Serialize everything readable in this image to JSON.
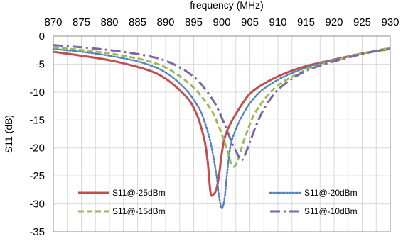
{
  "chart_data": {
    "type": "line",
    "xlabel": "frequency (MHz)",
    "ylabel": "S11 (dB)",
    "x_axis_position": "top",
    "xlim": [
      870,
      930
    ],
    "ylim": [
      -35,
      0
    ],
    "xticks": [
      870,
      875,
      880,
      885,
      890,
      895,
      900,
      905,
      910,
      915,
      920,
      925,
      930
    ],
    "yticks": [
      0,
      -5,
      -10,
      -15,
      -20,
      -25,
      -30,
      -35
    ],
    "grid": true,
    "legend_position": "bottom-inside",
    "series": [
      {
        "name": "S11@-25dBm",
        "color": "#c0504d",
        "style": "solid",
        "points": [
          [
            870,
            -2.8
          ],
          [
            875,
            -3.5
          ],
          [
            880,
            -4.3
          ],
          [
            885,
            -5.5
          ],
          [
            888,
            -6.5
          ],
          [
            890,
            -7.6
          ],
          [
            892,
            -9.2
          ],
          [
            894,
            -11.2
          ],
          [
            895,
            -12.8
          ],
          [
            896,
            -15.2
          ],
          [
            897,
            -19.0
          ],
          [
            897.5,
            -22.5
          ],
          [
            898,
            -28.0
          ],
          [
            898.5,
            -28.3
          ],
          [
            899,
            -27.5
          ],
          [
            899.5,
            -25.0
          ],
          [
            900,
            -21.0
          ],
          [
            900.5,
            -18.3
          ],
          [
            901,
            -16.8
          ],
          [
            902,
            -14.8
          ],
          [
            903,
            -13.1
          ],
          [
            904,
            -11.6
          ],
          [
            905,
            -10.3
          ],
          [
            907,
            -8.8
          ],
          [
            910,
            -7.2
          ],
          [
            913,
            -6.0
          ],
          [
            916,
            -5.1
          ],
          [
            920,
            -4.2
          ],
          [
            925,
            -3.1
          ],
          [
            930,
            -2.3
          ]
        ]
      },
      {
        "name": "S11@-20dBm",
        "color": "#4f81bd",
        "style": "dotted",
        "points": [
          [
            870,
            -2.3
          ],
          [
            875,
            -2.8
          ],
          [
            880,
            -3.5
          ],
          [
            885,
            -4.5
          ],
          [
            888,
            -5.5
          ],
          [
            890,
            -6.5
          ],
          [
            892,
            -8.0
          ],
          [
            894,
            -10.0
          ],
          [
            896,
            -13.0
          ],
          [
            897,
            -15.5
          ],
          [
            898,
            -19.0
          ],
          [
            899,
            -24.5
          ],
          [
            899.5,
            -28.5
          ],
          [
            900,
            -30.8
          ],
          [
            900.5,
            -29.0
          ],
          [
            901,
            -24.0
          ],
          [
            901.5,
            -20.0
          ],
          [
            902,
            -18.0
          ],
          [
            903,
            -15.5
          ],
          [
            904,
            -13.6
          ],
          [
            905,
            -12.0
          ],
          [
            907,
            -9.8
          ],
          [
            910,
            -7.8
          ],
          [
            913,
            -6.4
          ],
          [
            916,
            -5.3
          ],
          [
            920,
            -4.3
          ],
          [
            925,
            -3.1
          ],
          [
            930,
            -2.2
          ]
        ]
      },
      {
        "name": "S11@-15dBm",
        "color": "#9bbb59",
        "style": "dashed",
        "points": [
          [
            870,
            -2.0
          ],
          [
            875,
            -2.5
          ],
          [
            880,
            -3.1
          ],
          [
            885,
            -4.0
          ],
          [
            888,
            -4.8
          ],
          [
            890,
            -5.6
          ],
          [
            892,
            -6.8
          ],
          [
            894,
            -8.3
          ],
          [
            896,
            -10.3
          ],
          [
            898,
            -13.0
          ],
          [
            899,
            -15.0
          ],
          [
            900,
            -17.5
          ],
          [
            901,
            -20.5
          ],
          [
            901.5,
            -22.3
          ],
          [
            902,
            -23.3
          ],
          [
            902.5,
            -23.0
          ],
          [
            903,
            -21.8
          ],
          [
            904,
            -18.5
          ],
          [
            905,
            -15.8
          ],
          [
            906,
            -13.6
          ],
          [
            908,
            -10.8
          ],
          [
            910,
            -8.8
          ],
          [
            913,
            -7.0
          ],
          [
            916,
            -5.6
          ],
          [
            920,
            -4.4
          ],
          [
            925,
            -3.1
          ],
          [
            930,
            -2.1
          ]
        ]
      },
      {
        "name": "S11@-10dBm",
        "color": "#8064a2",
        "style": "dashdot",
        "points": [
          [
            870,
            -1.6
          ],
          [
            875,
            -2.0
          ],
          [
            880,
            -2.5
          ],
          [
            885,
            -3.2
          ],
          [
            888,
            -3.8
          ],
          [
            890,
            -4.4
          ],
          [
            892,
            -5.3
          ],
          [
            894,
            -6.5
          ],
          [
            896,
            -8.2
          ],
          [
            898,
            -10.8
          ],
          [
            899,
            -12.4
          ],
          [
            900,
            -14.6
          ],
          [
            901,
            -17.0
          ],
          [
            902,
            -19.5
          ],
          [
            903,
            -21.5
          ],
          [
            903.5,
            -22.2
          ],
          [
            904,
            -21.5
          ],
          [
            905,
            -19.0
          ],
          [
            906,
            -16.3
          ],
          [
            907,
            -14.0
          ],
          [
            908,
            -12.2
          ],
          [
            910,
            -9.6
          ],
          [
            913,
            -7.3
          ],
          [
            916,
            -5.8
          ],
          [
            920,
            -4.5
          ],
          [
            925,
            -3.2
          ],
          [
            930,
            -2.2
          ]
        ]
      }
    ]
  }
}
